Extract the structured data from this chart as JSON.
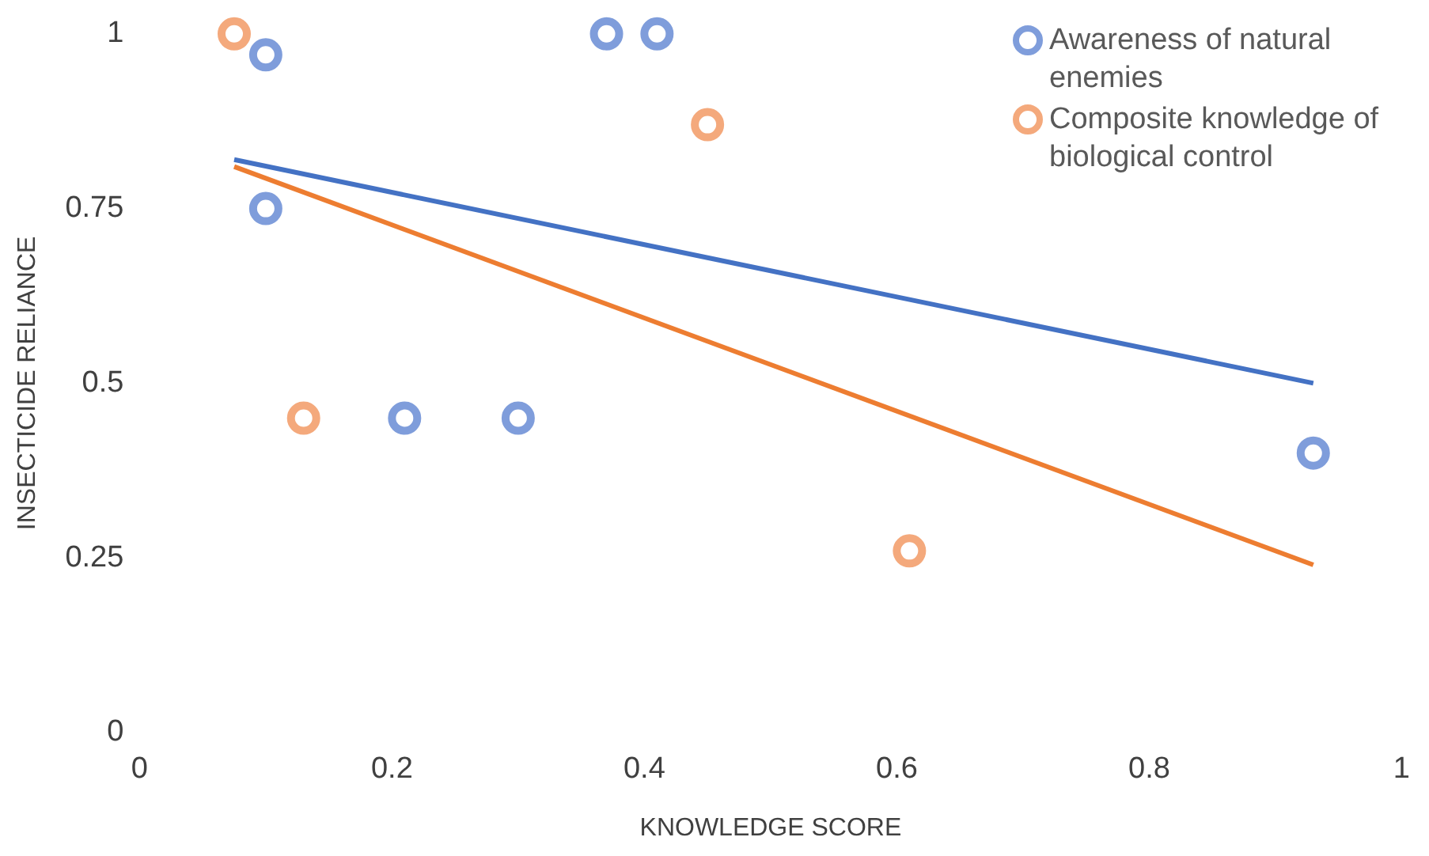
{
  "chart_data": {
    "type": "scatter",
    "xlabel": "KNOWLEDGE SCORE",
    "ylabel": "INSECTICIDE RELIANCE",
    "xlim": [
      0,
      1
    ],
    "xticks": [
      0,
      0.2,
      0.4,
      0.6,
      0.8,
      1
    ],
    "ylim": [
      0,
      1
    ],
    "yticks": [
      0,
      {
        "value": 0.25,
        "label": "0.25"
      },
      0.5,
      {
        "value": 0.75,
        "label": "0.75"
      },
      1
    ],
    "grid": false,
    "legend": "top right",
    "series": [
      {
        "name": "Awareness of natural enemies",
        "color": "#7f9ddb",
        "marker": "circle",
        "x": [
          0.1,
          0.1,
          0.21,
          0.3,
          0.37,
          0.41,
          0.93
        ],
        "values": [
          0.97,
          0.75,
          0.45,
          0.45,
          1,
          1,
          0.4
        ]
      },
      {
        "name": "Composite knowledge of biological control",
        "color": "#f4a97c",
        "marker": "circle",
        "x": [
          0.075,
          0.13,
          0.45,
          0.61
        ],
        "values": [
          1,
          0.45,
          0.87,
          0.26
        ]
      },
      {
        "color": "#4472c4",
        "type": "line",
        "marker": "none",
        "x": [
          0.075,
          0.93
        ],
        "values": [
          0.82,
          0.5
        ]
      },
      {
        "color": "#ed7d31",
        "type": "line",
        "marker": "none",
        "x": [
          0.075,
          0.93
        ],
        "values": [
          0.81,
          0.24
        ]
      }
    ]
  }
}
